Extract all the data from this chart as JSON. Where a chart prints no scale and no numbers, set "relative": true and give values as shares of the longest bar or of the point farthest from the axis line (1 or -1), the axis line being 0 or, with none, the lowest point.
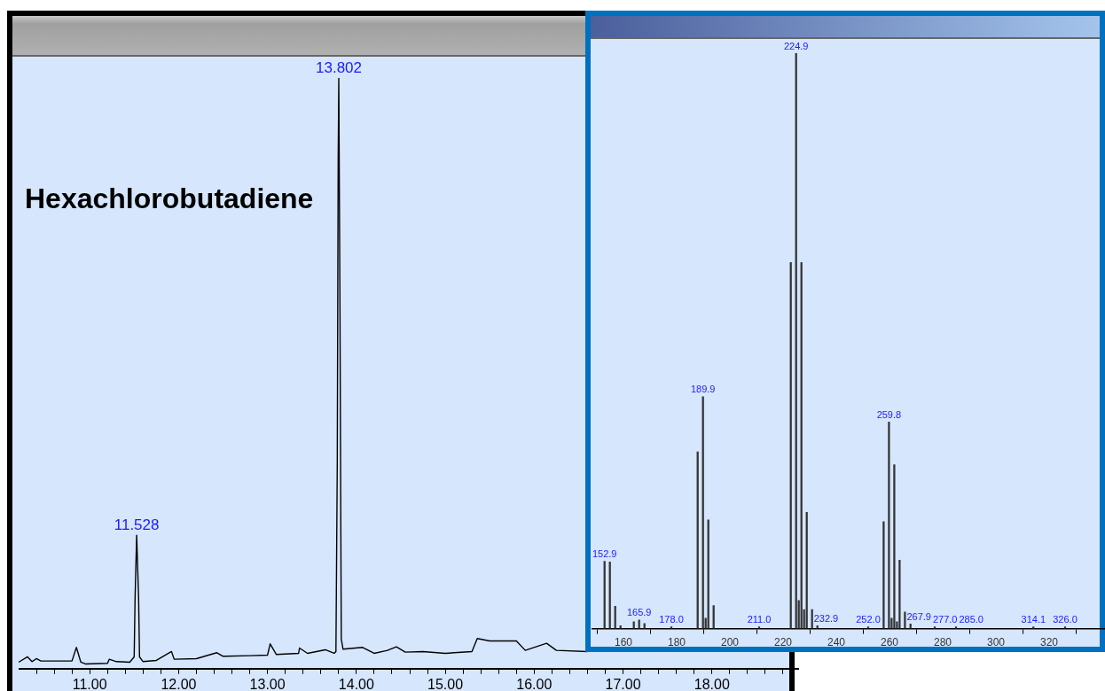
{
  "chart_data": [
    {
      "type": "line",
      "relative": true,
      "color": "#000000",
      "grid": false,
      "legend": false,
      "tick_labels": "x",
      "x": [
        10.2,
        10.3,
        10.35,
        10.4,
        10.45,
        10.8,
        10.85,
        10.9,
        10.95,
        11.2,
        11.22,
        11.3,
        11.45,
        11.5,
        11.51,
        11.528,
        11.55,
        11.56,
        11.6,
        11.75,
        11.92,
        11.95,
        12.2,
        12.43,
        12.5,
        12.8,
        13.0,
        13.03,
        13.1,
        13.35,
        13.36,
        13.45,
        13.65,
        13.75,
        13.77,
        13.785,
        13.795,
        13.802,
        13.815,
        13.83,
        13.85,
        14.07,
        14.2,
        14.35,
        14.45,
        14.55,
        14.75,
        15.0,
        15.3,
        15.36,
        15.5,
        15.8,
        15.9,
        16.14,
        16.25,
        16.6
      ],
      "values": [
        0.011,
        0.02,
        0.012,
        0.017,
        0.013,
        0.013,
        0.036,
        0.011,
        0.008,
        0.009,
        0.016,
        0.012,
        0.011,
        0.02,
        0.119,
        0.226,
        0.119,
        0.02,
        0.012,
        0.014,
        0.029,
        0.016,
        0.017,
        0.027,
        0.021,
        0.022,
        0.023,
        0.042,
        0.024,
        0.026,
        0.035,
        0.026,
        0.032,
        0.026,
        0.029,
        0.35,
        0.86,
        1.0,
        0.62,
        0.05,
        0.033,
        0.036,
        0.026,
        0.031,
        0.037,
        0.028,
        0.029,
        0.026,
        0.029,
        0.051,
        0.047,
        0.047,
        0.031,
        0.043,
        0.031,
        0.029
      ],
      "xlim": [
        10.2,
        18.98
      ],
      "xticks": [
        {
          "value": 10.4,
          "label": null
        },
        {
          "value": 10.6,
          "label": null
        },
        {
          "value": 10.8,
          "label": null
        },
        {
          "value": 11,
          "label": "11.00"
        },
        {
          "value": 11.2,
          "label": null
        },
        {
          "value": 11.4,
          "label": null
        },
        {
          "value": 11.6,
          "label": null
        },
        {
          "value": 11.8,
          "label": null
        },
        {
          "value": 12,
          "label": "12.00"
        },
        {
          "value": 12.2,
          "label": null
        },
        {
          "value": 12.4,
          "label": null
        },
        {
          "value": 12.6,
          "label": null
        },
        {
          "value": 12.8,
          "label": null
        },
        {
          "value": 13,
          "label": "13.00"
        },
        {
          "value": 13.2,
          "label": null
        },
        {
          "value": 13.4,
          "label": null
        },
        {
          "value": 13.6,
          "label": null
        },
        {
          "value": 13.8,
          "label": null
        },
        {
          "value": 14,
          "label": "14.00"
        },
        {
          "value": 14.2,
          "label": null
        },
        {
          "value": 14.4,
          "label": null
        },
        {
          "value": 14.6,
          "label": null
        },
        {
          "value": 14.8,
          "label": null
        },
        {
          "value": 15,
          "label": "15.00"
        },
        {
          "value": 15.2,
          "label": null
        },
        {
          "value": 15.4,
          "label": null
        },
        {
          "value": 15.6,
          "label": null
        },
        {
          "value": 15.8,
          "label": null
        },
        {
          "value": 16,
          "label": "16.00"
        },
        {
          "value": 16.2,
          "label": null
        },
        {
          "value": 16.4,
          "label": null
        },
        {
          "value": 16.6,
          "label": null
        },
        {
          "value": 16.8,
          "label": null
        },
        {
          "value": 17,
          "label": "17.00"
        },
        {
          "value": 17.2,
          "label": null
        },
        {
          "value": 17.4,
          "label": null
        },
        {
          "value": 17.6,
          "label": null
        },
        {
          "value": 17.8,
          "label": null
        },
        {
          "value": 18,
          "label": "18.00"
        },
        {
          "value": 18.2,
          "label": null
        },
        {
          "value": 18.4,
          "label": null
        },
        {
          "value": 18.6,
          "label": null
        },
        {
          "value": 18.8,
          "label": null
        }
      ],
      "annotations": [
        "Hexachlorobutadiene",
        {
          "text": "11.528",
          "x": 11.528,
          "y": 0.226
        },
        {
          "text": "13.802",
          "x": 13.802,
          "y": 1.0
        }
      ]
    },
    {
      "type": "bar",
      "relative": true,
      "color": "#333333",
      "grid": false,
      "legend": false,
      "tick_labels": "x",
      "x": [
        152.9,
        154.9,
        156.9,
        158.9,
        163.9,
        165.9,
        167.9,
        178.0,
        187.9,
        189.9,
        190.9,
        191.9,
        193.9,
        211.0,
        222.9,
        224.9,
        225.9,
        226.9,
        227.9,
        228.9,
        230.9,
        232.9,
        252.0,
        257.8,
        259.8,
        260.8,
        261.8,
        262.8,
        263.8,
        265.8,
        267.9,
        277.0,
        285.0,
        314.1,
        326.0
      ],
      "values": [
        0.117,
        0.116,
        0.039,
        0.005,
        0.012,
        0.015,
        0.009,
        0.003,
        0.307,
        0.403,
        0.018,
        0.189,
        0.04,
        0.003,
        0.636,
        1.0,
        0.049,
        0.636,
        0.033,
        0.202,
        0.033,
        0.005,
        0.003,
        0.186,
        0.359,
        0.018,
        0.285,
        0.012,
        0.119,
        0.029,
        0.008,
        0.003,
        0.003,
        0.003,
        0.003
      ],
      "xlim": [
        148,
        341
      ],
      "xticks": [
        160,
        180,
        200,
        220,
        240,
        260,
        280,
        300,
        320
      ],
      "annotations": [
        {
          "text": "152.9",
          "x": 152.9,
          "y": 0.117
        },
        {
          "text": "165.9",
          "x": 165.9,
          "y": 0.015
        },
        {
          "text": "178.0",
          "x": 178.0,
          "y": 0.003
        },
        {
          "text": "189.9",
          "x": 189.9,
          "y": 0.403
        },
        {
          "text": "211.0",
          "x": 211.0,
          "y": 0.003
        },
        {
          "text": "224.9",
          "x": 224.9,
          "y": 1.0
        },
        {
          "text": "232.9",
          "x": 232.9,
          "y": 0.005
        },
        {
          "text": "252.0",
          "x": 252.0,
          "y": 0.003
        },
        {
          "text": "259.8",
          "x": 259.8,
          "y": 0.359
        },
        {
          "text": "267.9",
          "x": 267.9,
          "y": 0.008
        },
        {
          "text": "277.0",
          "x": 277.0,
          "y": 0.003
        },
        {
          "text": "285.0",
          "x": 285.0,
          "y": 0.003
        },
        {
          "text": "314.1",
          "x": 314.1,
          "y": 0.003
        },
        {
          "text": "326.0",
          "x": 326.0,
          "y": 0.003
        }
      ]
    }
  ]
}
